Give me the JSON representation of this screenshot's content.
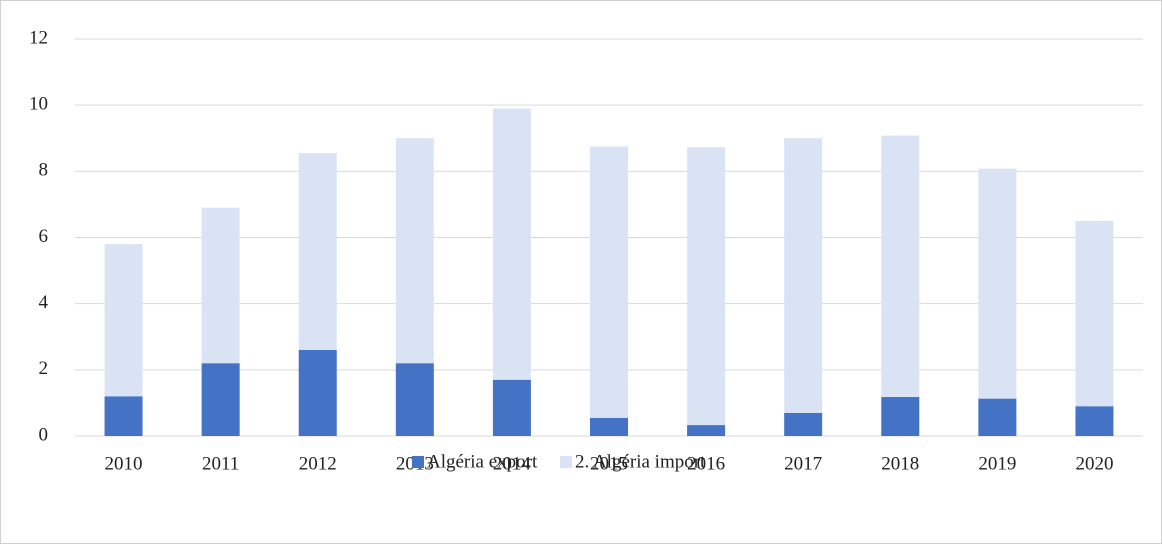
{
  "chart_data": {
    "type": "bar",
    "stacked": true,
    "categories": [
      "2010",
      "2011",
      "2012",
      "2013",
      "2014",
      "2015",
      "2016",
      "2017",
      "2018",
      "2019",
      "2020"
    ],
    "series": [
      {
        "name": "Algéria export",
        "color": "#4472c4",
        "values": [
          1.2,
          2.2,
          2.6,
          2.2,
          1.7,
          0.55,
          0.33,
          0.7,
          1.18,
          1.13,
          0.9
        ]
      },
      {
        "name": "2. Algéria import",
        "color": "#dae3f3",
        "values": [
          4.6,
          4.7,
          5.95,
          6.8,
          8.2,
          8.2,
          8.4,
          8.3,
          7.9,
          6.95,
          5.6
        ]
      }
    ],
    "ylim": [
      0,
      12
    ],
    "yticks": [
      0,
      2,
      4,
      6,
      8,
      10,
      12
    ],
    "grid": true,
    "legend": "bottom"
  }
}
